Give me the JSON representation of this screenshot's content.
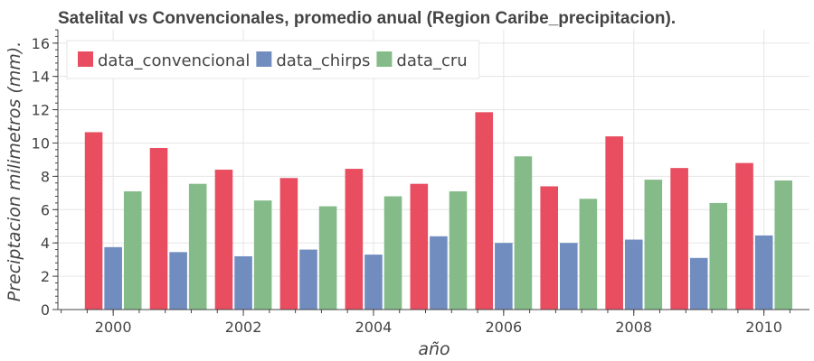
{
  "chart_data": {
    "type": "bar",
    "title": "Satelital vs Convencionales, promedio anual (Region Caribe_precipitacion).",
    "xlabel": "año",
    "ylabel": "Preciptacion milimetros (mm).",
    "x": [
      2000,
      2001,
      2002,
      2003,
      2004,
      2005,
      2006,
      2007,
      2008,
      2009,
      2010
    ],
    "x_tick_labels": [
      "2000",
      "2002",
      "2004",
      "2006",
      "2008",
      "2010"
    ],
    "x_ticks": [
      2000,
      2002,
      2004,
      2006,
      2008,
      2010
    ],
    "xlim": [
      1999.15,
      2010.7
    ],
    "ylim": [
      0,
      16.8
    ],
    "y_ticks": [
      0,
      2,
      4,
      6,
      8,
      10,
      12,
      14,
      16
    ],
    "grid": true,
    "legend_position": "top-left",
    "series": [
      {
        "name": "data_convencional",
        "color": "#e84d60",
        "values": [
          10.65,
          9.7,
          8.4,
          7.9,
          8.45,
          7.55,
          11.85,
          7.4,
          10.4,
          8.5,
          8.8
        ]
      },
      {
        "name": "data_chirps",
        "color": "#718dbf",
        "values": [
          3.75,
          3.45,
          3.2,
          3.6,
          3.3,
          4.4,
          4.0,
          4.0,
          4.2,
          3.1,
          4.45
        ]
      },
      {
        "name": "data_cru",
        "color": "#85bb89",
        "values": [
          7.1,
          7.55,
          6.55,
          6.2,
          6.8,
          7.1,
          9.2,
          6.65,
          7.8,
          6.4,
          7.75
        ]
      }
    ]
  }
}
